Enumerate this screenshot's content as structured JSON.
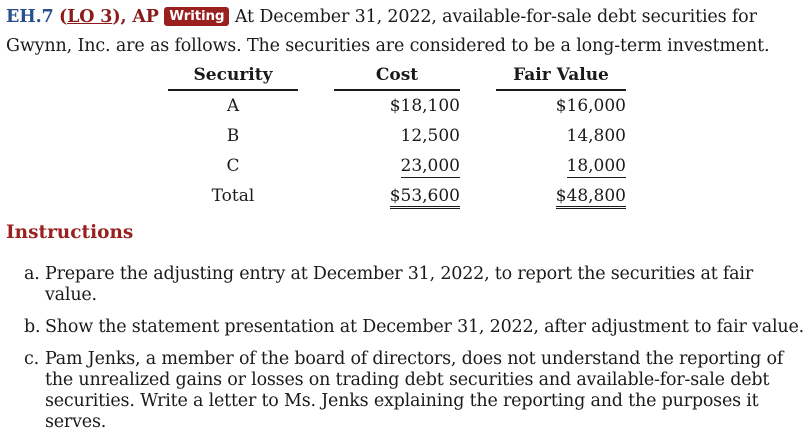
{
  "header": {
    "exercise": "EH.7",
    "lo_open": "(",
    "lo_link": "LO 3",
    "lo_close": "), AP",
    "badge": "Writing",
    "text": "At December 31, 2022, available-for-sale debt securities for Gwynn, Inc. are as follows. The securities are considered to be a long-term investment."
  },
  "table": {
    "columns": [
      "Security",
      "Cost",
      "Fair Value"
    ],
    "rows": [
      {
        "security": "A",
        "cost": "$18,100",
        "fair_value": "$16,000"
      },
      {
        "security": "B",
        "cost": "12,500",
        "fair_value": "14,800"
      },
      {
        "security": "C",
        "cost": "23,000",
        "fair_value": "18,000"
      },
      {
        "security": "Total",
        "cost": "$53,600",
        "fair_value": "$48,800"
      }
    ]
  },
  "instructions": {
    "title": "Instructions",
    "items": [
      {
        "marker": "a.",
        "text": "Prepare the adjusting entry at December 31, 2022, to report the securities at fair value."
      },
      {
        "marker": "b.",
        "text": "Show the statement presentation at December 31, 2022, after adjustment to fair value."
      },
      {
        "marker": "c.",
        "text": "Pam Jenks, a member of the board of directors, does not understand the reporting of the unrealized gains or losses on trading debt securities and available-for-sale debt securities. Write a letter to Ms. Jenks explaining the reporting and the purposes it serves."
      }
    ]
  }
}
